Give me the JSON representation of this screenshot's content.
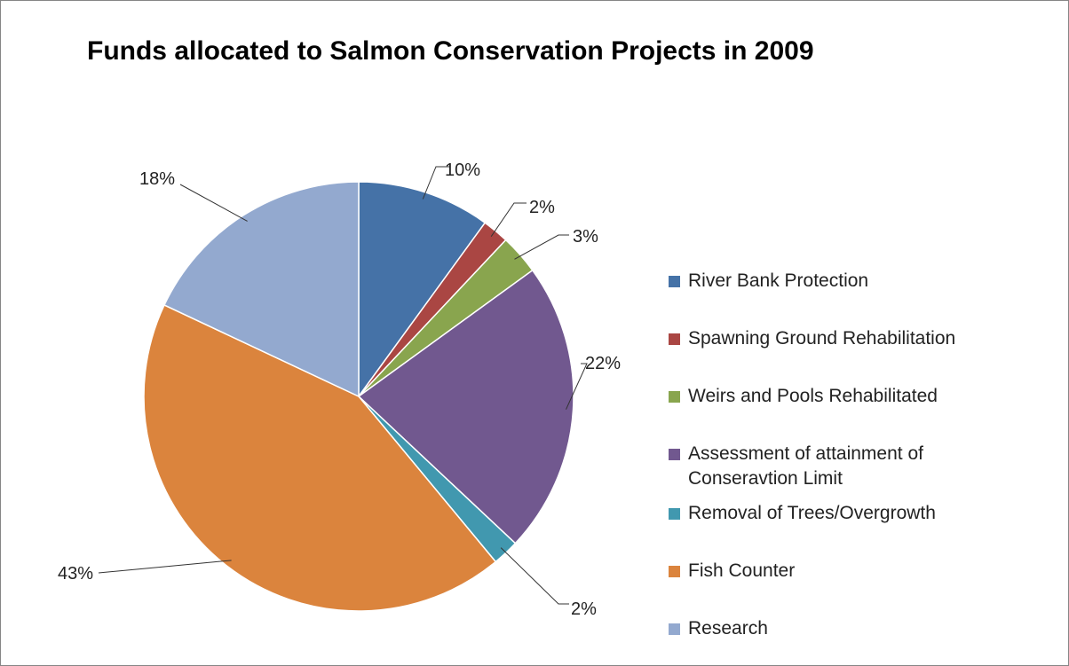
{
  "chart_data": {
    "type": "pie",
    "title": "Funds allocated to Salmon Conservation Projects in 2009",
    "legend_position": "right",
    "slices": [
      {
        "name": "River Bank Protection",
        "value": 10,
        "label": "10%",
        "color": "#4572a7"
      },
      {
        "name": "Spawning Ground Rehabilitation",
        "value": 2,
        "label": "2%",
        "color": "#aa4643"
      },
      {
        "name": "Weirs and Pools Rehabilitated",
        "value": 3,
        "label": "3%",
        "color": "#89a54e"
      },
      {
        "name": "Assessment of attainment of",
        "name_line2": "Conseravtion Limit",
        "value": 22,
        "label": "22%",
        "color": "#71588f"
      },
      {
        "name": "Removal of Trees/Overgrowth",
        "value": 2,
        "label": "2%",
        "color": "#4198af"
      },
      {
        "name": "Fish Counter",
        "value": 43,
        "label": "43%",
        "color": "#db843d"
      },
      {
        "name": "Research",
        "value": 18,
        "label": "18%",
        "color": "#93a9cf"
      }
    ]
  }
}
